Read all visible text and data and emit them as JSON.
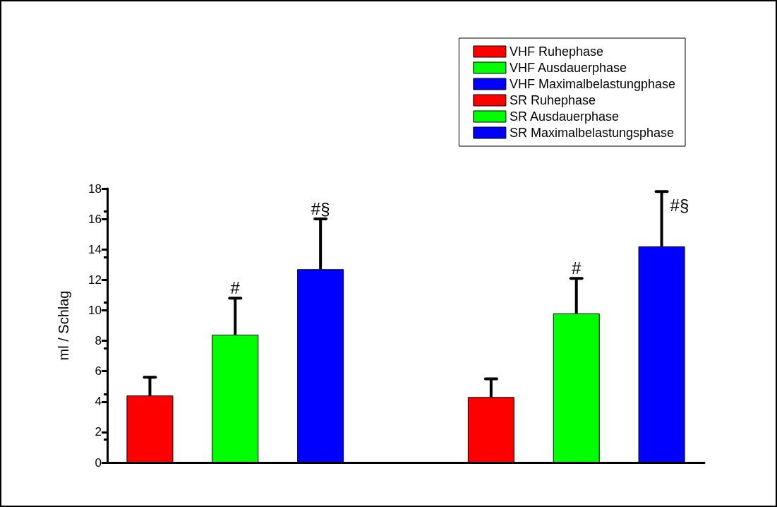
{
  "chart_data": {
    "type": "bar",
    "ylabel": "ml / Schlag",
    "categories": [
      null,
      null,
      null,
      null,
      null,
      null,
      null
    ],
    "series": [
      {
        "name": "VHF Ruhephase",
        "color": "#ff0000",
        "values": [
          4.4,
          null,
          null,
          null,
          null,
          null,
          null
        ],
        "errors": [
          1.2,
          null,
          null,
          null,
          null,
          null,
          null
        ]
      },
      {
        "name": "VHF Ausdauerphase",
        "color": "#00ff00",
        "values": [
          null,
          8.4,
          null,
          null,
          null,
          null,
          null
        ],
        "errors": [
          null,
          2.4,
          null,
          null,
          null,
          null,
          null
        ],
        "value_labels": [
          null,
          "#",
          null,
          null,
          null,
          null,
          null
        ]
      },
      {
        "name": "VHF Maximalbelastungphase",
        "color": "#0000ff",
        "values": [
          null,
          null,
          12.7,
          null,
          null,
          null,
          null
        ],
        "errors": [
          null,
          null,
          3.3,
          null,
          null,
          null,
          null
        ],
        "value_labels": [
          null,
          null,
          "#§",
          null,
          null,
          null,
          null
        ]
      },
      {
        "name": "SR Ruhephase",
        "color": "#ff0000",
        "values": [
          null,
          null,
          null,
          null,
          4.3,
          null,
          null
        ],
        "errors": [
          null,
          null,
          null,
          null,
          1.2,
          null,
          null
        ]
      },
      {
        "name": "SR Ausdauerphase",
        "color": "#00ff00",
        "values": [
          null,
          null,
          null,
          null,
          null,
          9.8,
          null
        ],
        "errors": [
          null,
          null,
          null,
          null,
          null,
          2.3,
          null
        ],
        "value_labels": [
          null,
          null,
          null,
          null,
          null,
          "#",
          null
        ]
      },
      {
        "name": "SR Maximalbelastungsphase",
        "color": "#0000ff",
        "values": [
          null,
          null,
          null,
          null,
          null,
          null,
          14.2
        ],
        "errors": [
          null,
          null,
          null,
          null,
          null,
          null,
          3.6
        ],
        "value_labels": [
          null,
          null,
          null,
          null,
          null,
          null,
          "#§"
        ]
      }
    ],
    "ylim": [
      0,
      18
    ],
    "yticks": [
      0,
      2,
      4,
      6,
      8,
      10,
      12,
      14,
      16,
      18
    ],
    "grid": false,
    "legend": "top right"
  }
}
